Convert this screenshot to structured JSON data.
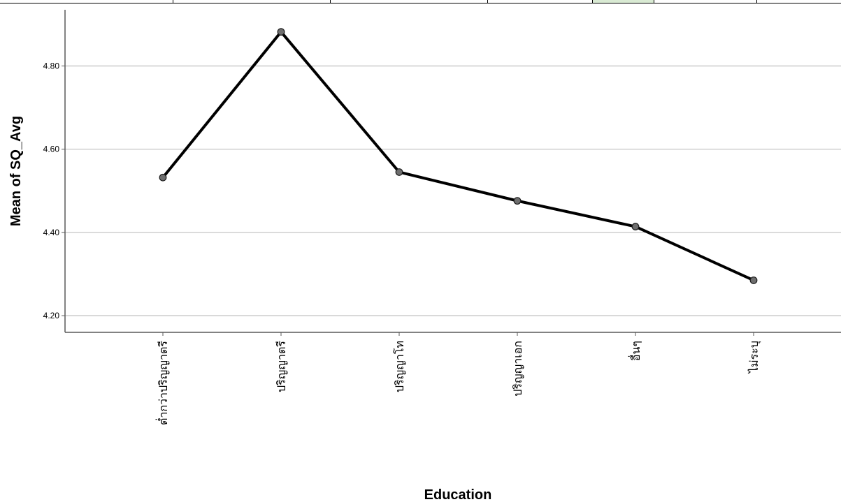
{
  "top_strip": {
    "highlight_color": "#d9ead3"
  },
  "chart_data": {
    "type": "line",
    "xlabel": "Education",
    "ylabel": "Mean of SQ_Avg",
    "categories": [
      "ต่ำกว่าปริญญาตรี",
      "ปริญญาตรี",
      "ปริญญาโท",
      "ปริญญาเอก",
      "อื่นๆ ระบุ",
      "ไม่ระบุ"
    ],
    "category_display": [
      "ต่ำกว่าปริญญาตรี",
      "ปริญญาตรี",
      "ปริญญาโท",
      "ปริญญาเอก",
      "อื่นๆ",
      "ไม่ระบุ"
    ],
    "values": [
      4.532,
      4.882,
      4.545,
      4.476,
      4.414,
      4.285
    ],
    "yticks": [
      "4.20",
      "4.40",
      "4.60",
      "4.80"
    ],
    "ylim": [
      4.16,
      4.935
    ],
    "grid": true,
    "line_color": "#000000",
    "marker_color": "#6e6e6e",
    "grid_color": "#bfbfbf"
  }
}
